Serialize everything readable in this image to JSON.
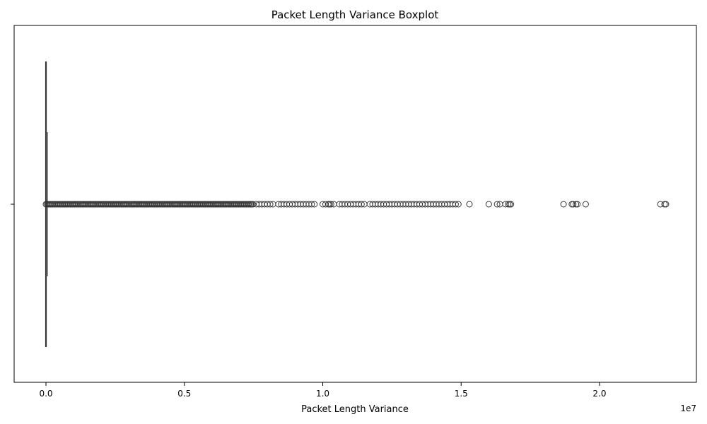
{
  "chart_data": {
    "type": "boxplot",
    "orientation": "horizontal",
    "title": "Packet Length Variance Boxplot",
    "xlabel": "Packet Length Variance",
    "ylabel": "",
    "xlim": [
      -0.115,
      2.35
    ],
    "x_scale_offset": "1e7",
    "xticks": [
      0.0,
      0.5,
      1.0,
      1.5,
      2.0
    ],
    "xtick_labels": [
      "0.0",
      "0.5",
      "1.0",
      "1.5",
      "2.0"
    ],
    "ytick_labels": [
      ""
    ],
    "grid": false,
    "box": {
      "min": 0.0,
      "q1": 0.0,
      "median": 0.0,
      "q3": 0.0003,
      "whisker_high": 0.0075,
      "dense_outlier_range": [
        0.0,
        0.75
      ]
    },
    "outliers": [
      0.76,
      0.77,
      0.78,
      0.79,
      0.8,
      0.81,
      0.82,
      0.84,
      0.85,
      0.86,
      0.87,
      0.88,
      0.89,
      0.9,
      0.91,
      0.92,
      0.93,
      0.94,
      0.95,
      0.96,
      0.97,
      1.0,
      1.01,
      1.02,
      1.025,
      1.03,
      1.04,
      1.06,
      1.07,
      1.08,
      1.09,
      1.1,
      1.11,
      1.12,
      1.13,
      1.14,
      1.15,
      1.17,
      1.18,
      1.19,
      1.2,
      1.21,
      1.22,
      1.23,
      1.24,
      1.25,
      1.26,
      1.27,
      1.28,
      1.29,
      1.3,
      1.31,
      1.32,
      1.33,
      1.34,
      1.35,
      1.36,
      1.37,
      1.38,
      1.39,
      1.4,
      1.41,
      1.42,
      1.43,
      1.44,
      1.45,
      1.46,
      1.47,
      1.48,
      1.49,
      1.53,
      1.6,
      1.63,
      1.64,
      1.66,
      1.67,
      1.675,
      1.68,
      1.87,
      1.9,
      1.905,
      1.915,
      1.92,
      1.95,
      2.22,
      2.235,
      2.24
    ]
  }
}
